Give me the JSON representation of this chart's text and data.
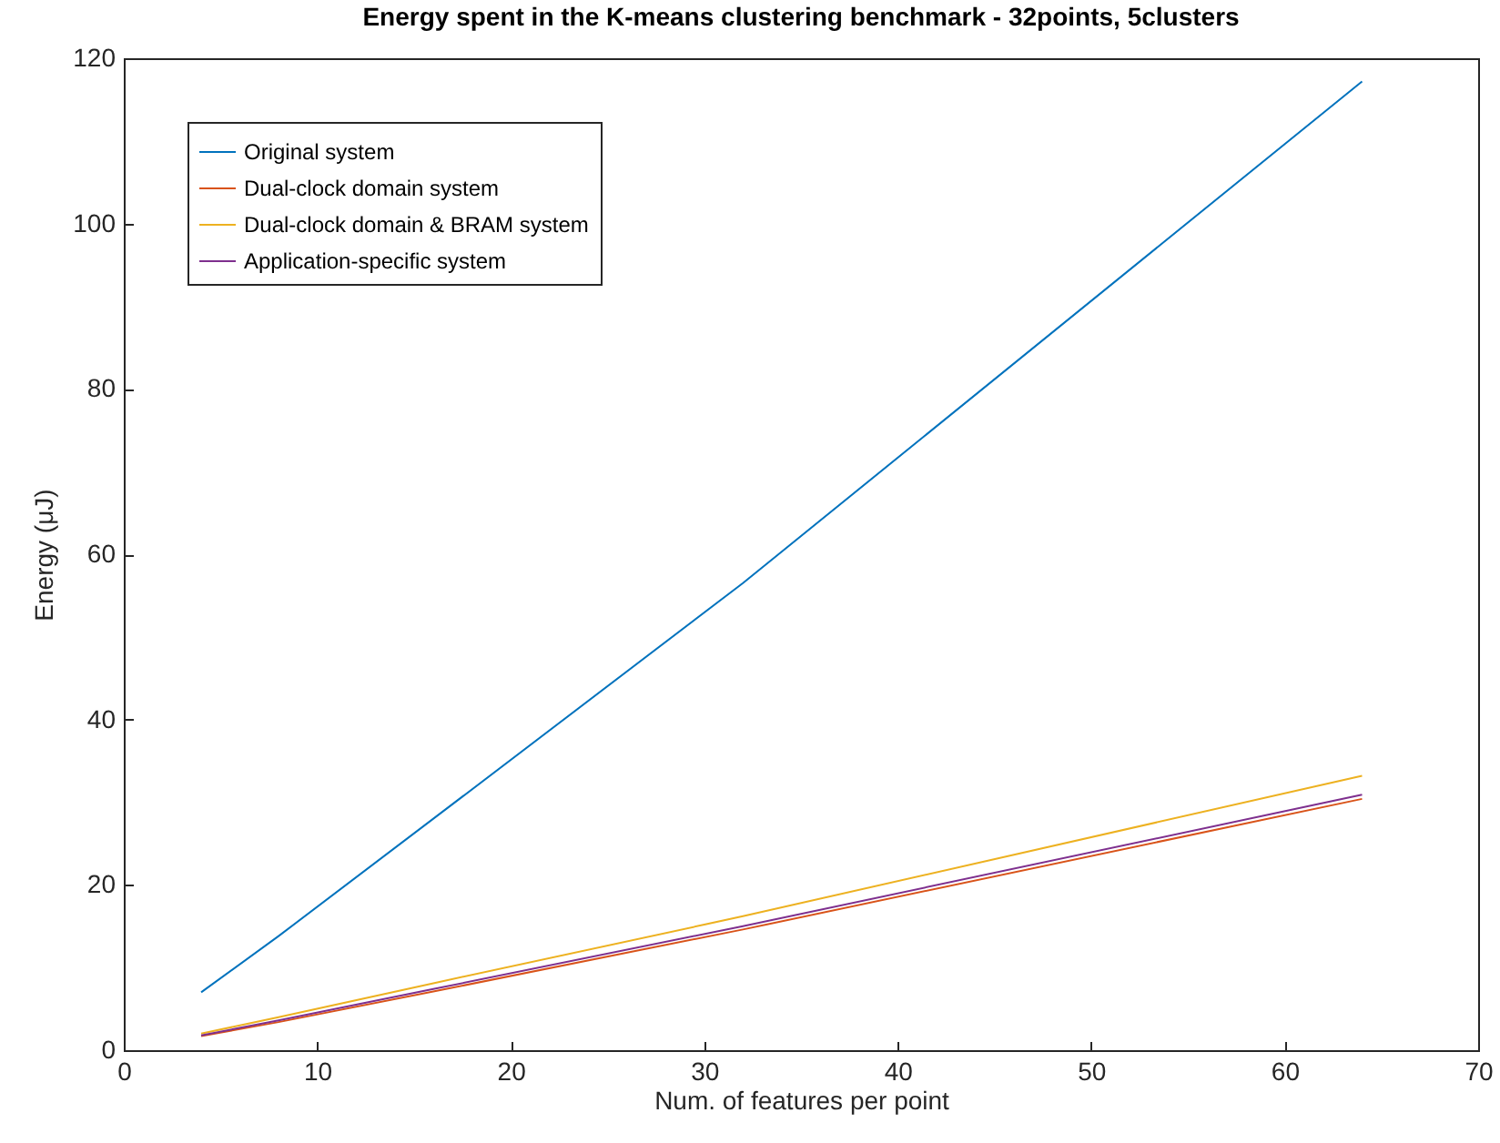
{
  "chart_data": {
    "type": "line",
    "title": "Energy spent in the K-means clustering benchmark - 32points, 5clusters",
    "xlabel": "Num. of features per point",
    "ylabel": "Energy (μJ)",
    "x": [
      4,
      8,
      16,
      32,
      64
    ],
    "series": [
      {
        "name": "Original system",
        "color": "#0072bd",
        "values": [
          7,
          13.8,
          28,
          56.5,
          117.2
        ]
      },
      {
        "name": "Dual-clock domain system",
        "color": "#d95319",
        "values": [
          1.7,
          3.4,
          7.1,
          14.6,
          30.4
        ]
      },
      {
        "name": "Dual-clock domain & BRAM system",
        "color": "#edb120",
        "values": [
          2,
          4,
          8.1,
          16.2,
          33.2
        ]
      },
      {
        "name": "Application-specific system",
        "color": "#7e2f8e",
        "values": [
          1.8,
          3.6,
          7.4,
          15,
          30.9
        ]
      }
    ],
    "xlim": [
      0,
      70
    ],
    "xticks": [
      0,
      10,
      20,
      30,
      40,
      50,
      60,
      70
    ],
    "ylim": [
      0,
      120
    ],
    "yticks": [
      0,
      20,
      40,
      60,
      80,
      100,
      120
    ],
    "grid": false,
    "legend": "top left",
    "line_style": "solid"
  }
}
